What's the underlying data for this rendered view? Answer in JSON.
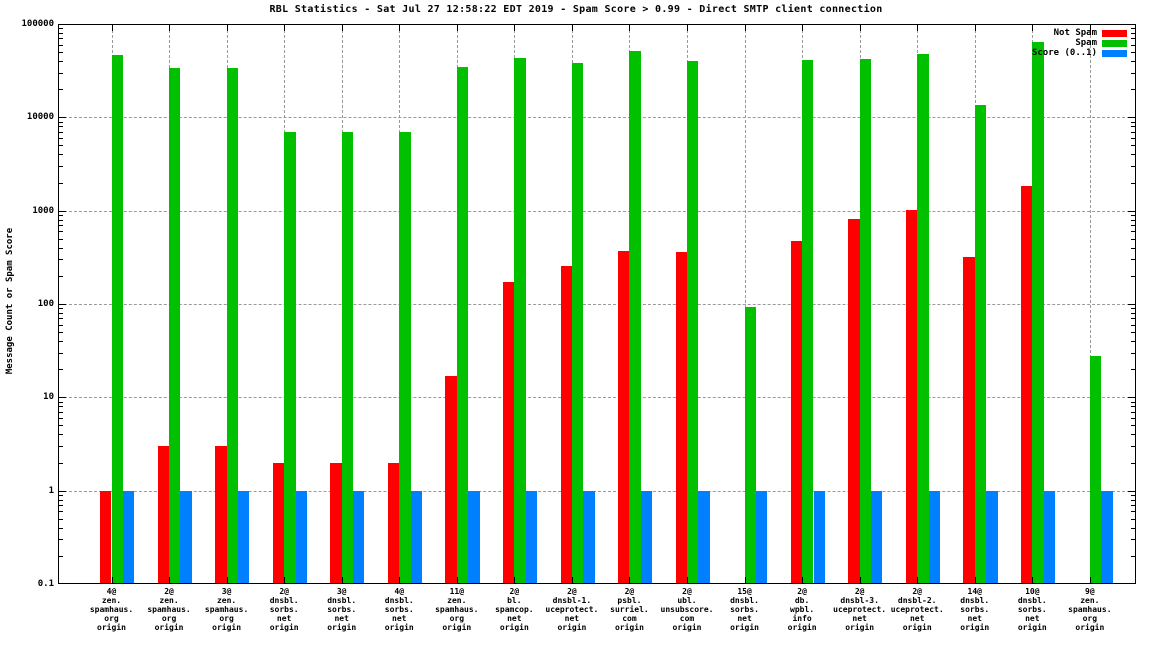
{
  "chart_data": {
    "type": "bar",
    "title": "RBL Statistics - Sat Jul 27 12:58:22 EDT 2019 - Spam Score > 0.99 - Direct SMTP client connection",
    "ylabel": "Message Count or Spam Score",
    "xlabel": "",
    "y_scale": "log10",
    "ylim": [
      0.1,
      100000
    ],
    "y_tick_labels": [
      "100000",
      "10000",
      "1000",
      "100",
      "10",
      "1",
      "0.1"
    ],
    "y_tick_values": [
      100000,
      10000,
      1000,
      100,
      10,
      1,
      0.1
    ],
    "grid": true,
    "legend_position": "top-right-inside",
    "legend": [
      {
        "label": "Not Spam",
        "color": "#ff0000"
      },
      {
        "label": "Spam",
        "color": "#00c000"
      },
      {
        "label": "Score (0..1)",
        "color": "#0080ff"
      }
    ],
    "categories": [
      [
        "4@",
        "zen.",
        "spamhaus.",
        "org",
        "origin"
      ],
      [
        "2@",
        "zen.",
        "spamhaus.",
        "org",
        "origin"
      ],
      [
        "3@",
        "zen.",
        "spamhaus.",
        "org",
        "origin"
      ],
      [
        "2@",
        "dnsbl.",
        "sorbs.",
        "net",
        "origin"
      ],
      [
        "3@",
        "dnsbl.",
        "sorbs.",
        "net",
        "origin"
      ],
      [
        "4@",
        "dnsbl.",
        "sorbs.",
        "net",
        "origin"
      ],
      [
        "11@",
        "zen.",
        "spamhaus.",
        "org",
        "origin"
      ],
      [
        "2@",
        "bl.",
        "spamcop.",
        "net",
        "origin"
      ],
      [
        "2@",
        "dnsbl-1.",
        "uceprotect.",
        "net",
        "origin"
      ],
      [
        "2@",
        "psbl.",
        "surriel.",
        "com",
        "origin"
      ],
      [
        "2@",
        "ubl.",
        "unsubscore.",
        "com",
        "origin"
      ],
      [
        "15@",
        "dnsbl.",
        "sorbs.",
        "net",
        "origin"
      ],
      [
        "2@",
        "db.",
        "wpbl.",
        "info",
        "origin"
      ],
      [
        "2@",
        "dnsbl-3.",
        "uceprotect.",
        "net",
        "origin"
      ],
      [
        "2@",
        "dnsbl-2.",
        "uceprotect.",
        "net",
        "origin"
      ],
      [
        "14@",
        "dnsbl.",
        "sorbs.",
        "net",
        "origin"
      ],
      [
        "10@",
        "dnsbl.",
        "sorbs.",
        "net",
        "origin"
      ],
      [
        "9@",
        "zen.",
        "spamhaus.",
        "org",
        "origin"
      ]
    ],
    "series": [
      {
        "name": "Not Spam",
        "color": "#ff0000",
        "values": [
          1,
          3,
          3,
          2,
          2,
          2,
          17,
          170,
          255,
          370,
          360,
          null,
          470,
          820,
          1020,
          320,
          1820,
          null
        ]
      },
      {
        "name": "Spam",
        "color": "#00c000",
        "values": [
          46000,
          34000,
          33500,
          7000,
          7000,
          7000,
          34500,
          43000,
          38500,
          51000,
          40500,
          92,
          41000,
          42000,
          48000,
          13500,
          64000,
          28
        ]
      },
      {
        "name": "Score (0..1)",
        "color": "#0080ff",
        "values": [
          1,
          1,
          1,
          1,
          1,
          1,
          1,
          1,
          1,
          1,
          1,
          1,
          1,
          1,
          1,
          1,
          1,
          1
        ]
      }
    ]
  }
}
